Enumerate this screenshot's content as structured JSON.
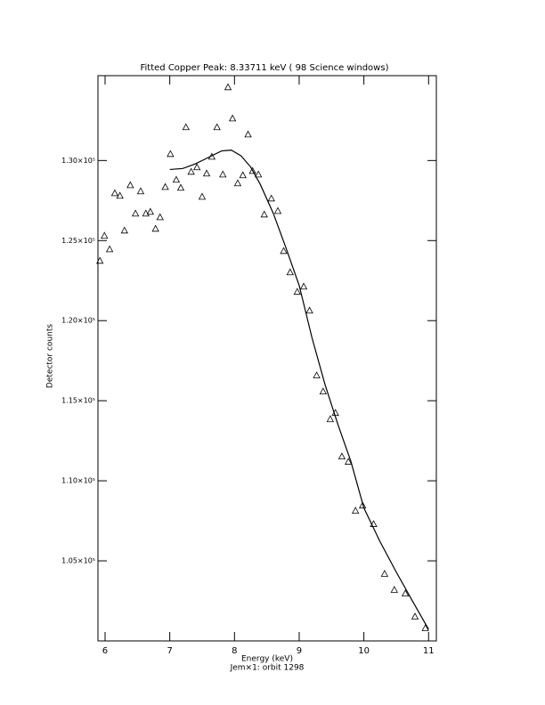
{
  "chart_data": {
    "type": "scatter",
    "title": "Fitted Copper Peak:      8.33711 keV (      98 Science windows)",
    "x_label": "Energy (keV)",
    "subtitle": "Jem×1: orbit 1298",
    "y_label": "Detector counts",
    "xlim": [
      5.89,
      11.12
    ],
    "ylim": [
      100000,
      135300
    ],
    "xticks": [
      6,
      7,
      8,
      9,
      10,
      11
    ],
    "yticks": [
      {
        "value": 105000,
        "label": "1.05×10⁵"
      },
      {
        "value": 110000,
        "label": "1.10×10⁵"
      },
      {
        "value": 115000,
        "label": "1.15×10⁵"
      },
      {
        "value": 120000,
        "label": "1.20×10⁵"
      },
      {
        "value": 125000,
        "label": "1.25×10⁵"
      },
      {
        "value": 130000,
        "label": "1.30×10⁵"
      }
    ],
    "series": [
      {
        "type": "scatter",
        "color": "#000000",
        "x": [
          5.92,
          5.99,
          6.07,
          6.15,
          6.23,
          6.3,
          6.39,
          6.47,
          6.55,
          6.63,
          6.7,
          6.78,
          6.85,
          6.93,
          7.01,
          7.1,
          7.17,
          7.25,
          7.33,
          7.42,
          7.5,
          7.57,
          7.65,
          7.73,
          7.82,
          7.9,
          7.97,
          8.05,
          8.13,
          8.21,
          8.28,
          8.37,
          8.46,
          8.57,
          8.67,
          8.76,
          8.86,
          8.97,
          9.07,
          9.16,
          9.27,
          9.37,
          9.48,
          9.56,
          9.66,
          9.76,
          9.87,
          9.98,
          10.15,
          10.32,
          10.47,
          10.64,
          10.79,
          10.95
        ],
        "values": [
          123720,
          125280,
          124440,
          127940,
          127780,
          125610,
          128440,
          126670,
          128060,
          126670,
          126780,
          125720,
          126440,
          128330,
          130390,
          128780,
          128280,
          132060,
          129280,
          129560,
          127720,
          129170,
          130220,
          132060,
          129110,
          134560,
          132610,
          128560,
          129060,
          131610,
          129330,
          129110,
          126610,
          127610,
          126830,
          124330,
          123000,
          121780,
          122110,
          120610,
          116560,
          115560,
          113830,
          114220,
          111500,
          111170,
          108110,
          108440,
          107280,
          104170,
          103170,
          102940,
          101500,
          100780
        ]
      },
      {
        "type": "line",
        "color": "#000000",
        "x": [
          7.0,
          7.2,
          7.4,
          7.6,
          7.8,
          7.95,
          8.1,
          8.25,
          8.4,
          8.6,
          8.8,
          9.0,
          9.2,
          9.4,
          9.6,
          9.8,
          10.0,
          10.25,
          10.5,
          10.75,
          11.0
        ],
        "values": [
          129440,
          129500,
          129800,
          130200,
          130600,
          130650,
          130300,
          129600,
          128500,
          126700,
          124500,
          122200,
          118900,
          116000,
          113500,
          111200,
          108300,
          106200,
          104300,
          102500,
          100720
        ]
      }
    ]
  }
}
